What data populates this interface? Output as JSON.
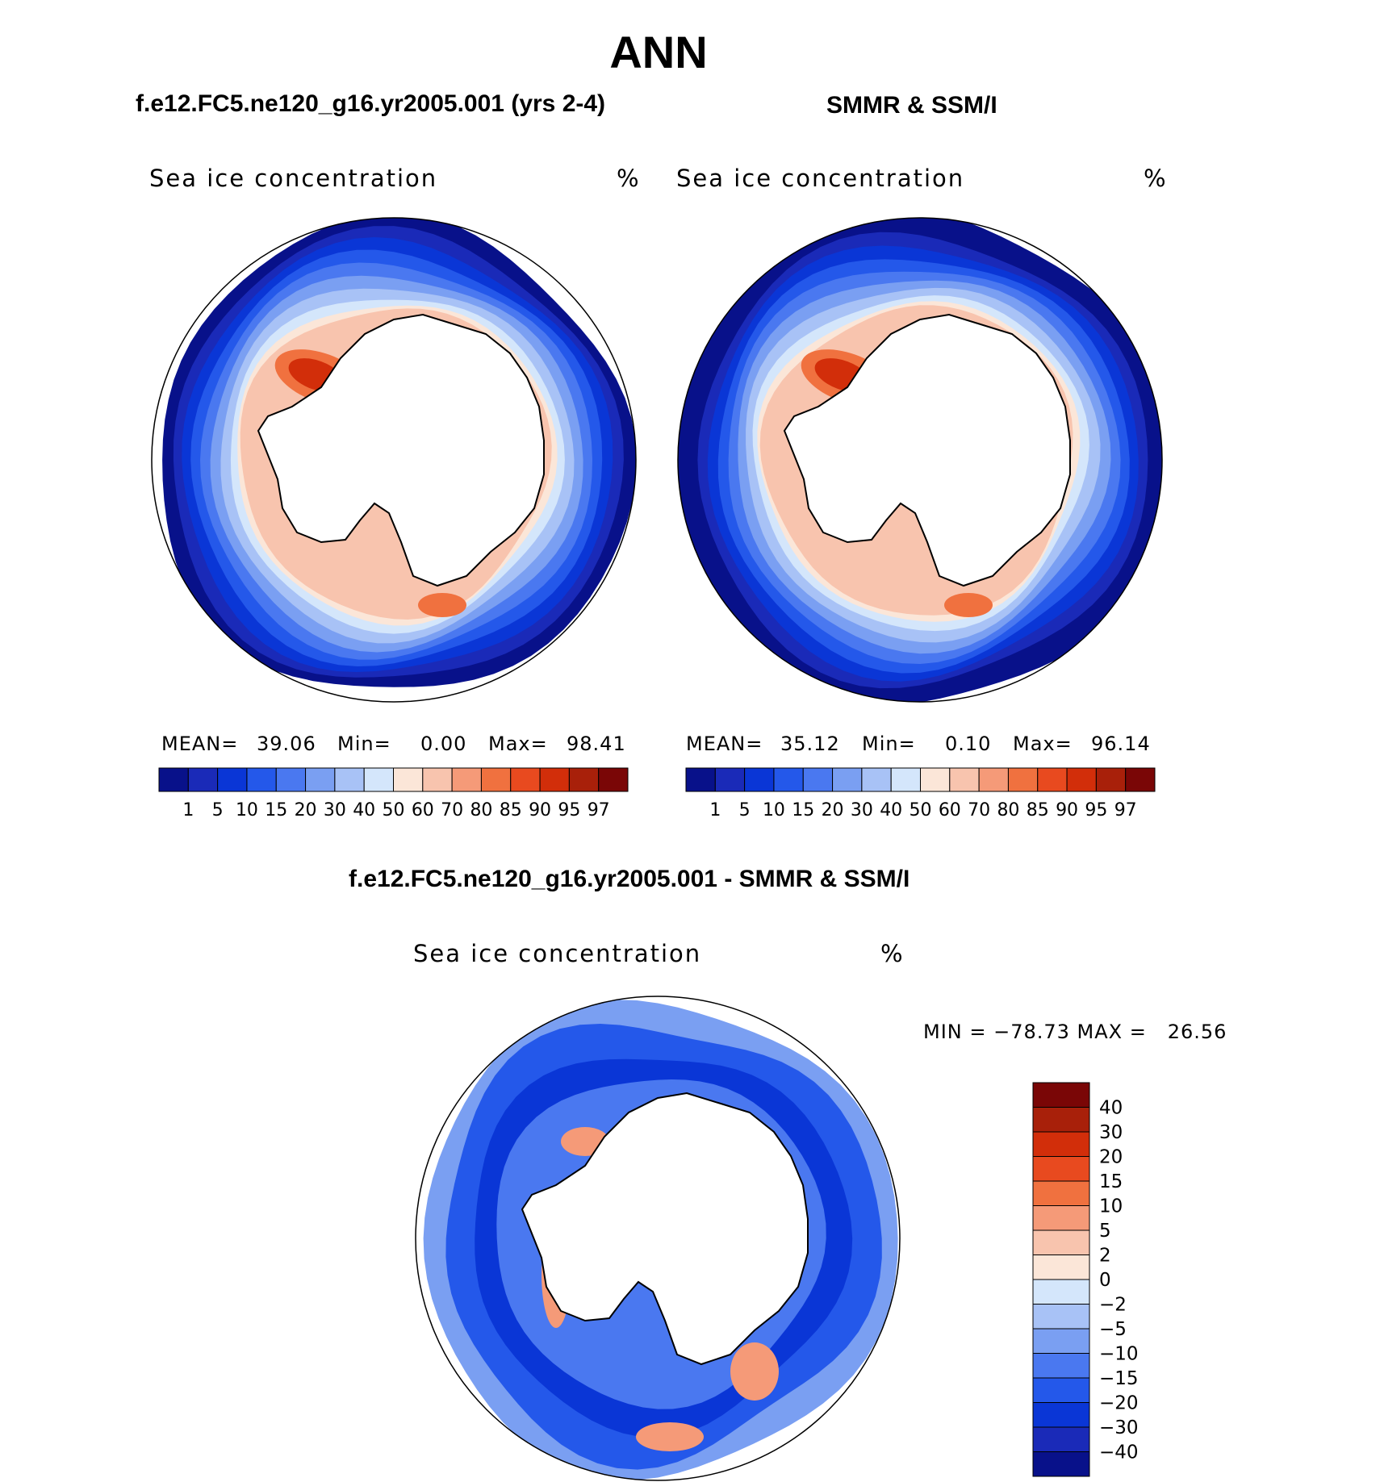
{
  "title": "ANN",
  "panels": [
    {
      "id": "model",
      "title": "f.e12.FC5.ne120_g16.yr2005.001 (yrs 2-4)",
      "variable": "Sea ice concentration",
      "units": "%",
      "stats": {
        "mean_label": "MEAN=",
        "mean": "39.06",
        "min_label": "Min=",
        "min": "0.00",
        "max_label": "Max=",
        "max": "98.41"
      }
    },
    {
      "id": "obs",
      "title": "SMMR & SSM/I",
      "variable": "Sea ice concentration",
      "units": "%",
      "stats": {
        "mean_label": "MEAN=",
        "mean": "35.12",
        "min_label": "Min=",
        "min": "0.10",
        "max_label": "Max=",
        "max": "96.14"
      }
    },
    {
      "id": "diff",
      "title": "f.e12.FC5.ne120_g16.yr2005.001 - SMMR & SSM/I",
      "variable": "Sea ice concentration",
      "units": "%",
      "range_text": "MIN = −78.73 MAX =   26.56"
    }
  ],
  "chart_data": [
    {
      "type": "heatmap",
      "projection": "south-polar-stereographic",
      "title": "f.e12.FC5.ne120_g16.yr2005.001 (yrs 2-4)",
      "field": "Sea ice concentration",
      "units": "%",
      "mean": 39.06,
      "min": 0.0,
      "max": 98.41,
      "levels": [
        1,
        5,
        10,
        15,
        20,
        30,
        40,
        50,
        60,
        70,
        80,
        85,
        90,
        95,
        97
      ],
      "level_labels": [
        "1",
        "5",
        "10",
        "15",
        "20",
        "30",
        "40",
        "50",
        "60",
        "70",
        "80",
        "85",
        "90",
        "95",
        "97"
      ],
      "colors": [
        "#08118a",
        "#1a2ab8",
        "#0a36d6",
        "#2458ea",
        "#4a78f0",
        "#7a9ff2",
        "#a8c2f6",
        "#d4e6fb",
        "#fbe6d8",
        "#f8c4ae",
        "#f59a78",
        "#f0713f",
        "#e84a1f",
        "#d22e0a",
        "#a8200a",
        "#7a0606"
      ],
      "colorbar": "horizontal"
    },
    {
      "type": "heatmap",
      "projection": "south-polar-stereographic",
      "title": "SMMR & SSM/I",
      "field": "Sea ice concentration",
      "units": "%",
      "mean": 35.12,
      "min": 0.1,
      "max": 96.14,
      "levels": [
        1,
        5,
        10,
        15,
        20,
        30,
        40,
        50,
        60,
        70,
        80,
        85,
        90,
        95,
        97
      ],
      "level_labels": [
        "1",
        "5",
        "10",
        "15",
        "20",
        "30",
        "40",
        "50",
        "60",
        "70",
        "80",
        "85",
        "90",
        "95",
        "97"
      ],
      "colors": [
        "#08118a",
        "#1a2ab8",
        "#0a36d6",
        "#2458ea",
        "#4a78f0",
        "#7a9ff2",
        "#a8c2f6",
        "#d4e6fb",
        "#fbe6d8",
        "#f8c4ae",
        "#f59a78",
        "#f0713f",
        "#e84a1f",
        "#d22e0a",
        "#a8200a",
        "#7a0606"
      ],
      "colorbar": "horizontal"
    },
    {
      "type": "heatmap",
      "projection": "south-polar-stereographic",
      "title": "f.e12.FC5.ne120_g16.yr2005.001 - SMMR & SSM/I",
      "field": "Sea ice concentration",
      "units": "%",
      "min": -78.73,
      "max": 26.56,
      "levels": [
        -40,
        -30,
        -20,
        -15,
        -10,
        -5,
        -2,
        0,
        2,
        5,
        10,
        15,
        20,
        30,
        40
      ],
      "level_labels": [
        "−40",
        "−30",
        "−20",
        "−15",
        "−10",
        "−5",
        "−2",
        "0",
        "2",
        "5",
        "10",
        "15",
        "20",
        "30",
        "40"
      ],
      "colors": [
        "#08118a",
        "#1a2ab8",
        "#0a36d6",
        "#2458ea",
        "#4a78f0",
        "#7a9ff2",
        "#a8c2f6",
        "#d4e6fb",
        "#fbe6d8",
        "#f8c4ae",
        "#f59a78",
        "#f0713f",
        "#e84a1f",
        "#d22e0a",
        "#a8200a",
        "#7a0606"
      ],
      "colorbar": "vertical"
    }
  ]
}
